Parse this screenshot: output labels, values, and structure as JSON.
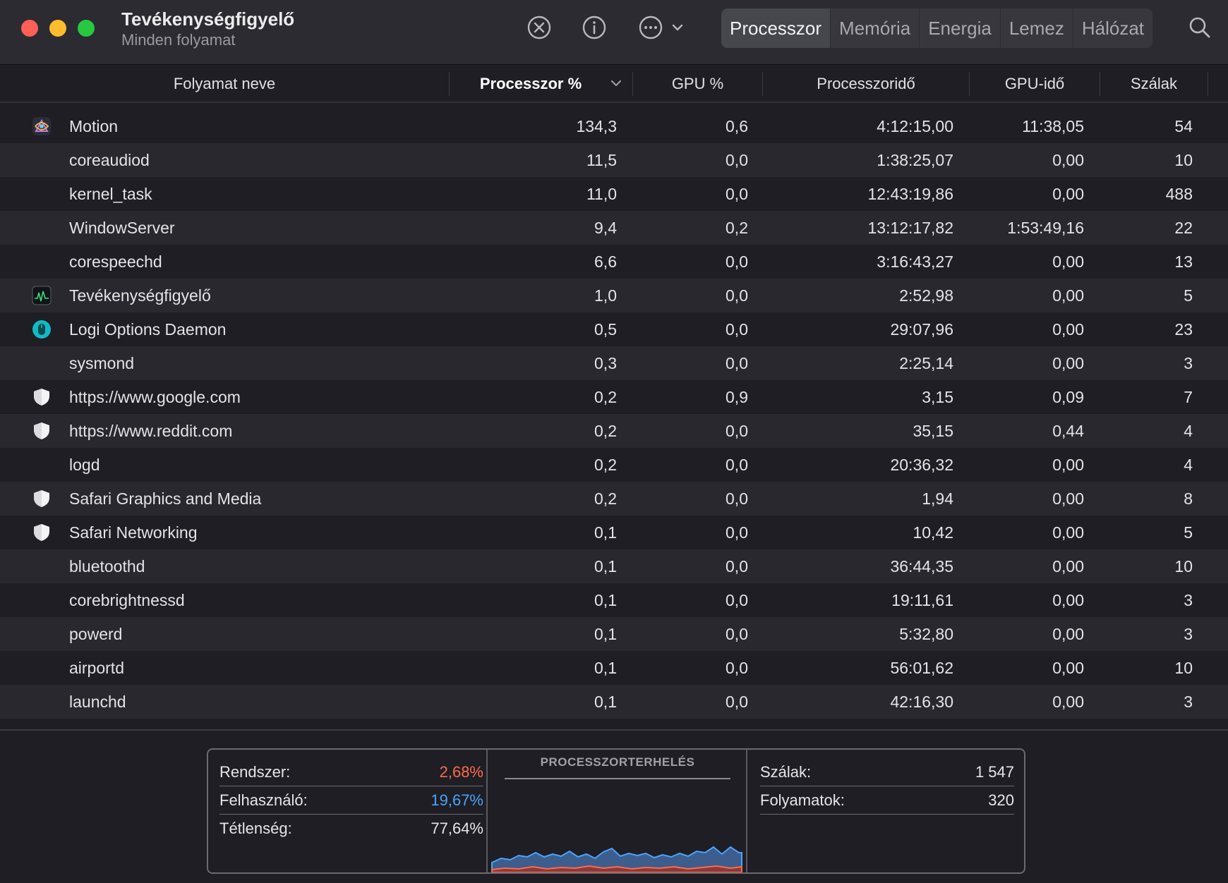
{
  "window": {
    "title": "Tevékenységfigyelő",
    "subtitle": "Minden folyamat"
  },
  "toolbar": {
    "stop_icon": "xmark-circle-icon",
    "info_icon": "info-circle-icon",
    "more_icon": "ellipsis-circle-icon",
    "search_icon": "magnifying-glass-icon",
    "tabs": [
      "Processzor",
      "Memória",
      "Energia",
      "Lemez",
      "Hálózat"
    ],
    "active_tab": "Processzor"
  },
  "table": {
    "columns": [
      "Folyamat neve",
      "Processzor %",
      "GPU %",
      "Processzoridő",
      "GPU-idő",
      "Szálak"
    ],
    "sorted_column": "Processzor %",
    "rows": [
      {
        "name": "Motion",
        "cpu": "134,3",
        "gpu": "0,6",
        "cpu_time": "4:12:15,00",
        "gpu_time": "11:38,05",
        "threads": "54",
        "icon": "motion-app-icon"
      },
      {
        "name": "coreaudiod",
        "cpu": "11,5",
        "gpu": "0,0",
        "cpu_time": "1:38:25,07",
        "gpu_time": "0,00",
        "threads": "10",
        "icon": ""
      },
      {
        "name": "kernel_task",
        "cpu": "11,0",
        "gpu": "0,0",
        "cpu_time": "12:43:19,86",
        "gpu_time": "0,00",
        "threads": "488",
        "icon": ""
      },
      {
        "name": "WindowServer",
        "cpu": "9,4",
        "gpu": "0,2",
        "cpu_time": "13:12:17,82",
        "gpu_time": "1:53:49,16",
        "threads": "22",
        "icon": ""
      },
      {
        "name": "corespeechd",
        "cpu": "6,6",
        "gpu": "0,0",
        "cpu_time": "3:16:43,27",
        "gpu_time": "0,00",
        "threads": "13",
        "icon": ""
      },
      {
        "name": "Tevékenységfigyelő",
        "cpu": "1,0",
        "gpu": "0,0",
        "cpu_time": "2:52,98",
        "gpu_time": "0,00",
        "threads": "5",
        "icon": "activity-monitor-icon"
      },
      {
        "name": "Logi Options Daemon",
        "cpu": "0,5",
        "gpu": "0,0",
        "cpu_time": "29:07,96",
        "gpu_time": "0,00",
        "threads": "23",
        "icon": "logi-options-icon"
      },
      {
        "name": "sysmond",
        "cpu": "0,3",
        "gpu": "0,0",
        "cpu_time": "2:25,14",
        "gpu_time": "0,00",
        "threads": "3",
        "icon": ""
      },
      {
        "name": "https://www.google.com",
        "cpu": "0,2",
        "gpu": "0,9",
        "cpu_time": "3,15",
        "gpu_time": "0,09",
        "threads": "7",
        "icon": "shield-icon"
      },
      {
        "name": "https://www.reddit.com",
        "cpu": "0,2",
        "gpu": "0,0",
        "cpu_time": "35,15",
        "gpu_time": "0,44",
        "threads": "4",
        "icon": "shield-icon"
      },
      {
        "name": "logd",
        "cpu": "0,2",
        "gpu": "0,0",
        "cpu_time": "20:36,32",
        "gpu_time": "0,00",
        "threads": "4",
        "icon": ""
      },
      {
        "name": "Safari Graphics and Media",
        "cpu": "0,2",
        "gpu": "0,0",
        "cpu_time": "1,94",
        "gpu_time": "0,00",
        "threads": "8",
        "icon": "shield-icon"
      },
      {
        "name": "Safari Networking",
        "cpu": "0,1",
        "gpu": "0,0",
        "cpu_time": "10,42",
        "gpu_time": "0,00",
        "threads": "5",
        "icon": "shield-icon"
      },
      {
        "name": "bluetoothd",
        "cpu": "0,1",
        "gpu": "0,0",
        "cpu_time": "36:44,35",
        "gpu_time": "0,00",
        "threads": "10",
        "icon": ""
      },
      {
        "name": "corebrightnessd",
        "cpu": "0,1",
        "gpu": "0,0",
        "cpu_time": "19:11,61",
        "gpu_time": "0,00",
        "threads": "3",
        "icon": ""
      },
      {
        "name": "powerd",
        "cpu": "0,1",
        "gpu": "0,0",
        "cpu_time": "5:32,80",
        "gpu_time": "0,00",
        "threads": "3",
        "icon": ""
      },
      {
        "name": "airportd",
        "cpu": "0,1",
        "gpu": "0,0",
        "cpu_time": "56:01,62",
        "gpu_time": "0,00",
        "threads": "10",
        "icon": ""
      },
      {
        "name": "launchd",
        "cpu": "0,1",
        "gpu": "0,0",
        "cpu_time": "42:16,30",
        "gpu_time": "0,00",
        "threads": "3",
        "icon": ""
      }
    ]
  },
  "footer": {
    "system_label": "Rendszer:",
    "system_value": "2,68%",
    "user_label": "Felhasználó:",
    "user_value": "19,67%",
    "idle_label": "Tétlenség:",
    "idle_value": "77,64%",
    "load_title": "PROCESSZORTERHELÉS",
    "threads_label": "Szálak:",
    "threads_value": "1 547",
    "processes_label": "Folyamatok:",
    "processes_value": "320",
    "colors": {
      "system": "#ff6a4d",
      "user": "#4aa3ff"
    }
  }
}
